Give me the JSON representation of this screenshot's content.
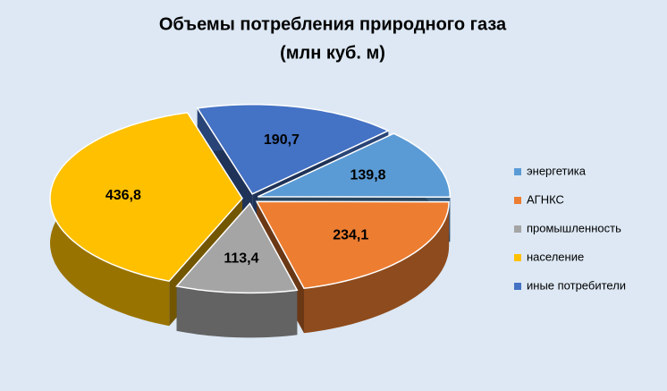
{
  "chart_data": {
    "type": "pie3d",
    "title": "Объемы потребления природного газа",
    "subtitle": "(млн куб. м)",
    "categories": [
      "энергетика",
      "АГНКС",
      "промышленность",
      "население",
      "иные потребители"
    ],
    "values": [
      139.8,
      234.1,
      113.4,
      436.8,
      190.7
    ],
    "value_labels": [
      "139,8",
      "234,1",
      "113,4",
      "436,8",
      "190,7"
    ],
    "colors": [
      "#5b9bd5",
      "#ed7d31",
      "#a5a5a5",
      "#ffc000",
      "#4472c4"
    ],
    "legend": "right"
  }
}
